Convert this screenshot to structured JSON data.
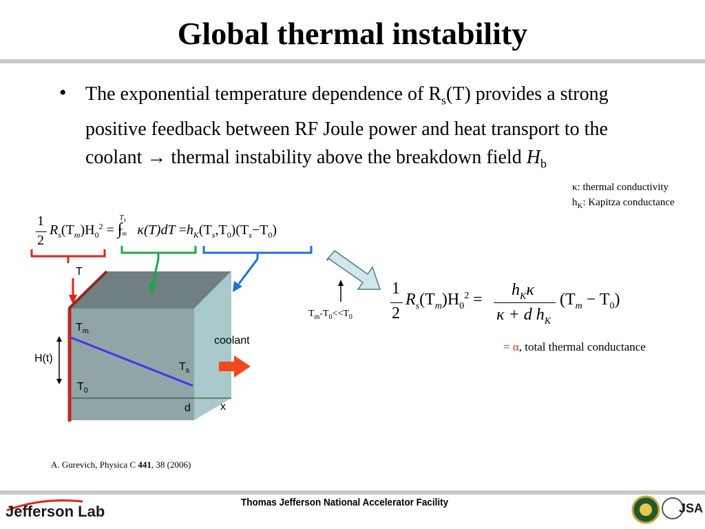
{
  "slide": {
    "title": "Global thermal instability",
    "bullet": {
      "part1": "The exponential temperature dependence of R",
      "sub1": "s",
      "part2": "(T) provides a strong positive feedback between RF Joule power and heat transport to the coolant ",
      "arrow": "→",
      "part3": " thermal instability above the breakdown field ",
      "field": "H",
      "field_sub": "b"
    },
    "notes": {
      "kappa": "κ: thermal conductivity",
      "hk_prefix": "h",
      "hk_sub": "K",
      "hk_suffix": ": Kapitza conductance"
    },
    "approx": {
      "t_m": "T",
      "m_sub": "m",
      "dash": "-T",
      "zero_sub": "0",
      "rel": "<<T",
      "zero_sub2": "0"
    },
    "alpha_note": {
      "eq": "= ",
      "alpha": "α",
      "text": ", total thermal conductance"
    },
    "reference": {
      "prefix": "A. Gurevich, Physica C ",
      "volume": "441",
      "suffix": ", 38 (2006)"
    },
    "figure": {
      "T": "T",
      "Tm": "T",
      "Tm_sub": "m",
      "Ts": "T",
      "Ts_sub": "s",
      "T0": "T",
      "T0_sub": "0",
      "Ht": "H(t)",
      "coolant": "coolant",
      "d": "d",
      "x": "x"
    },
    "equation1": {
      "half_num": "1",
      "half_den": "2",
      "lhs": "R",
      "lhs_s": "s",
      "tm": "(T",
      "tm_sub": "m",
      "h0": ")H",
      "h0_sub": "0",
      "h0_sup": "2",
      "eq": "=",
      "int_upper": "T",
      "int_upper_sub": "s",
      "int_lower": "T",
      "int_lower_sub": "m",
      "integrand": "κ(T)dT",
      "eq2": "=",
      "hk": "h",
      "hk_sub": "K",
      "args": "(T",
      "args_s": "s",
      "args_comma": ",T",
      "args_0": "0",
      "args_close": ")(T",
      "args2_s": "s",
      "minus": "−T",
      "args2_0": "0",
      "close": ")"
    },
    "equation2": {
      "half_num": "1",
      "half_den": "2",
      "lhs": "R",
      "lhs_s": "s",
      "tm": "(T",
      "tm_sub": "m",
      "h0": ")H",
      "h0_sub": "0",
      "h0_sup": "2",
      "eq": "=",
      "num_h": "h",
      "num_k": "K",
      "num_kappa": "κ",
      "den": "κ + d h",
      "den_k": "K",
      "rhs": "(T",
      "rhs_m": "m",
      "rhs_minus": " − T",
      "rhs_0": "0",
      "rhs_close": ")"
    },
    "footer": {
      "org": "Thomas Jefferson National Accelerator Facility",
      "logo_left": "Jefferson Lab",
      "logo_right": "JSA"
    },
    "colors": {
      "bracket_red": "#e2231a",
      "bracket_green": "#1aa84a",
      "bracket_blue": "#1e6fd9",
      "profile_line": "#4b2ff0",
      "coolant_arrow": "#f04a1a",
      "slab": "#a9c9cc",
      "alpha_red": "#e2231a"
    }
  }
}
